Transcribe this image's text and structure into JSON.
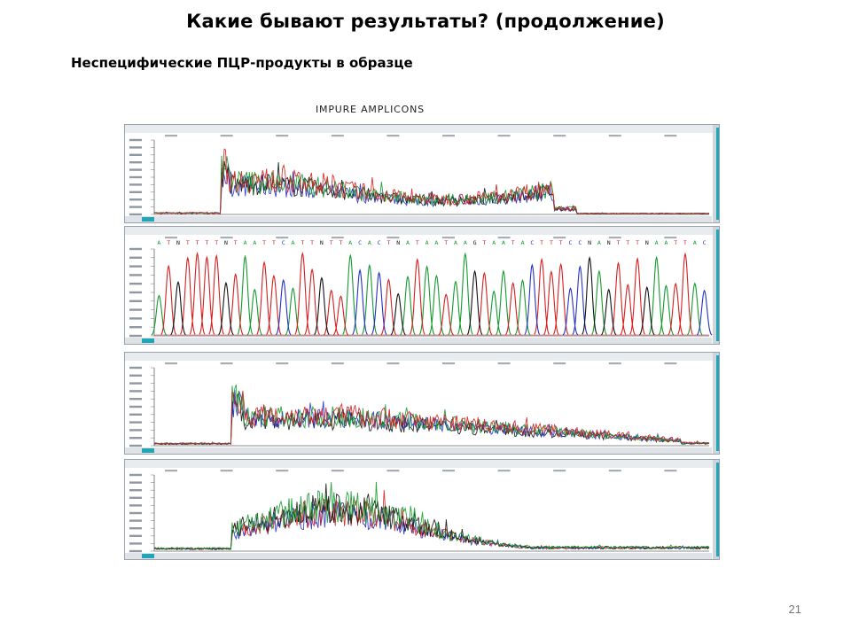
{
  "slide": {
    "title": "Какие бывают результаты? (продолжение)",
    "subtitle": "Неспецифические ПЦР-продукты в образце",
    "page_number": "21"
  },
  "figure": {
    "caption": "IMPURE AMPLICONS",
    "panel_count": 4,
    "trace_colors": {
      "red": "#d61f1f",
      "green": "#149a2e",
      "blue": "#2630c8",
      "black": "#111111"
    },
    "frame_color": "#9aa4b0",
    "accent_color": "#1fa7b8",
    "panels": [
      {
        "type": "noisy-start",
        "base_sequence": ""
      },
      {
        "type": "clean-peaks",
        "base_sequence": "ATNTTTTNTAATTCATTNTTACACTNATAATAAGTAATACTTTCCNANTTTNAATTAC"
      },
      {
        "type": "noisy-broad",
        "base_sequence": ""
      },
      {
        "type": "broad-hump",
        "base_sequence": ""
      }
    ]
  }
}
